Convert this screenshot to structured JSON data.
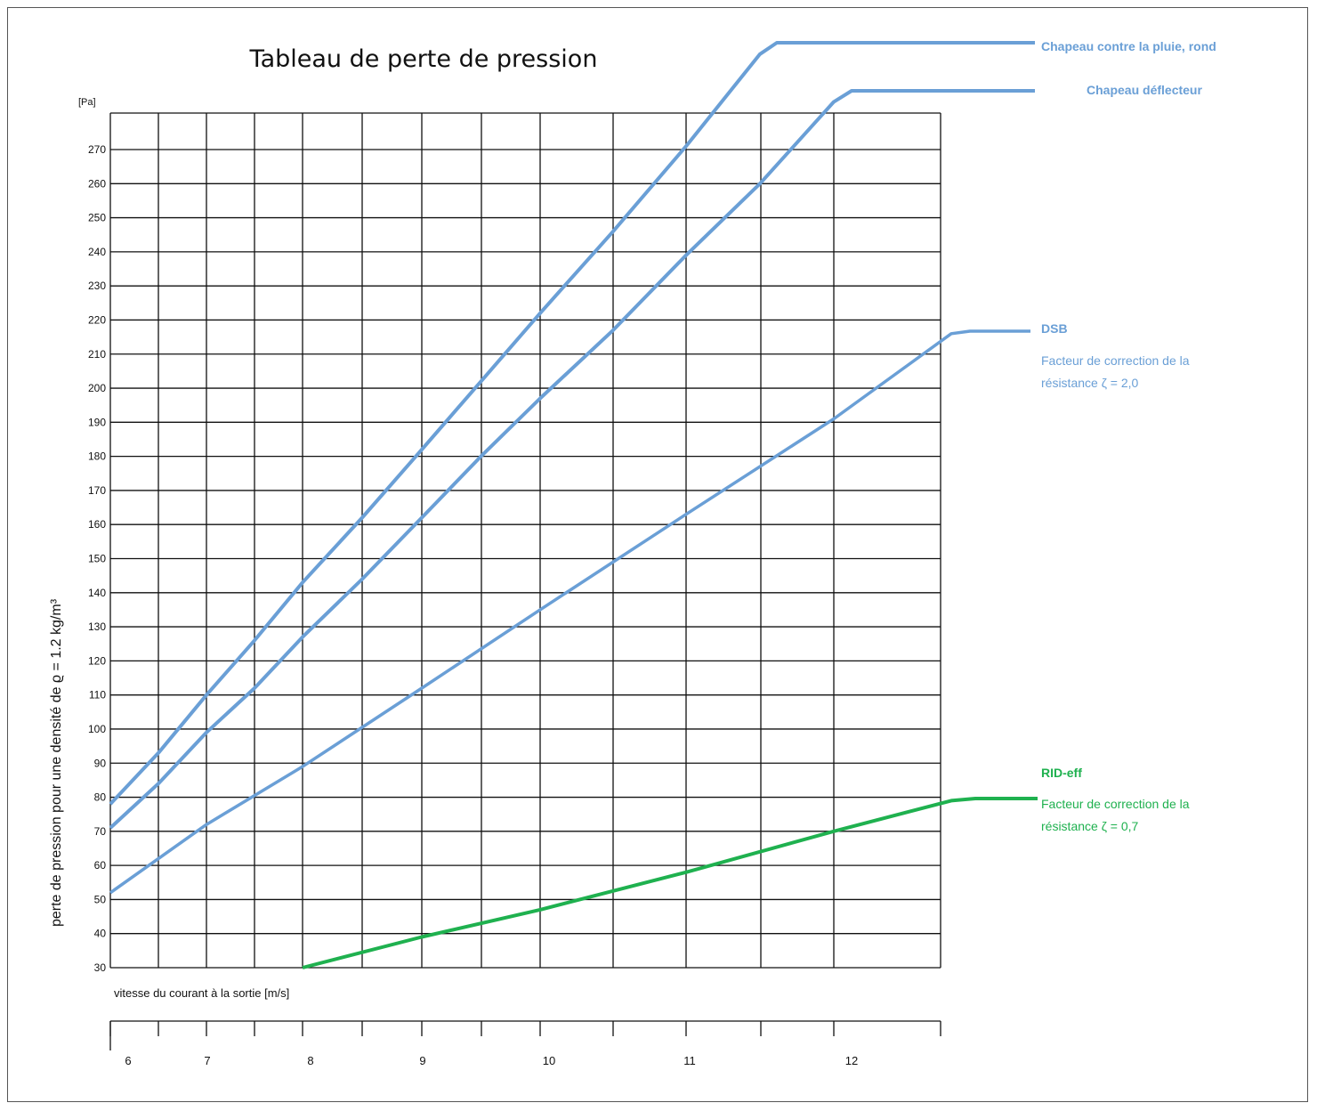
{
  "chart_data": {
    "type": "line",
    "title": "Tableau de perte de pression",
    "y_unit": "[Pa]",
    "ylabel": "perte de pression pour une densité de ϱ = 1.2 kg/m³",
    "xlabel": "vitesse du courant à la sortie [m/s]",
    "ylim": [
      30,
      270
    ],
    "yticks": [
      30,
      40,
      50,
      60,
      70,
      80,
      90,
      100,
      110,
      120,
      130,
      140,
      150,
      160,
      170,
      180,
      190,
      200,
      210,
      220,
      230,
      240,
      250,
      260,
      270
    ],
    "xticks": [
      "6",
      "7",
      "8",
      "9",
      "10",
      "11",
      "12"
    ],
    "grid": true,
    "series": [
      {
        "name": "Chapeau contre la pluie, rond",
        "color": "#6a9fd6",
        "x": [
          6,
          6.5,
          7,
          7.5,
          8,
          8.5,
          9,
          9.5,
          10,
          10.5,
          11,
          11.5
        ],
        "y": [
          78,
          93,
          110,
          126,
          143,
          162,
          182,
          202,
          222,
          246,
          271,
          298
        ]
      },
      {
        "name": "Chapeau déflecteur",
        "note": "",
        "color": "#6a9fd6",
        "x": [
          6,
          6.5,
          7,
          7.5,
          8,
          8.5,
          9,
          9.5,
          10,
          10.5,
          11,
          11.5,
          12
        ],
        "y": [
          71,
          84,
          99,
          112,
          127,
          144,
          162,
          180,
          197,
          217,
          239,
          260,
          284
        ]
      },
      {
        "name": "DSB",
        "note": "Facteur de correction de la résistance ζ = 2,0",
        "color": "#6a9fd6",
        "x": [
          6,
          7,
          8,
          9,
          10,
          11,
          12,
          12.75
        ],
        "y": [
          52,
          72,
          89,
          112,
          135,
          163,
          191,
          216
        ]
      },
      {
        "name": "RID-eff",
        "note": "Facteur de correction de la résistance ζ = 0,7",
        "color": "#1fb14f",
        "x": [
          8,
          9,
          10,
          11,
          12,
          12.75
        ],
        "y": [
          30,
          39,
          47,
          58,
          70,
          79
        ]
      }
    ]
  }
}
